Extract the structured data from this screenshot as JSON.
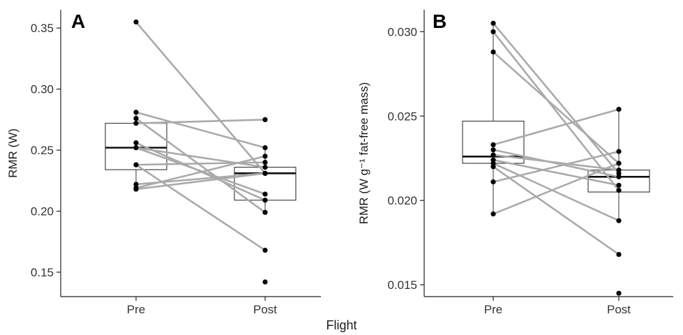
{
  "shared_xlabel": "Flight",
  "chart_data": [
    {
      "type": "box-paired",
      "panel_label": "A",
      "ylabel": "RMR (W)",
      "xlabel": "",
      "categories": [
        "Pre",
        "Post"
      ],
      "ylim": [
        0.13,
        0.365
      ],
      "yticks": [
        0.15,
        0.2,
        0.25,
        0.3,
        0.35
      ],
      "ytick_labels": [
        "0.15",
        "0.20",
        "0.25",
        "0.30",
        "0.35"
      ],
      "boxes": [
        {
          "category": "Pre",
          "q1": 0.234,
          "median": 0.252,
          "q3": 0.272,
          "whisker_low": 0.218,
          "whisker_high": 0.281
        },
        {
          "category": "Post",
          "q1": 0.209,
          "median": 0.231,
          "q3": 0.236,
          "whisker_low": 0.199,
          "whisker_high": 0.252
        }
      ],
      "pairs": [
        [
          0.355,
          0.231
        ],
        [
          0.281,
          0.252
        ],
        [
          0.276,
          0.199
        ],
        [
          0.272,
          0.275
        ],
        [
          0.256,
          0.209
        ],
        [
          0.252,
          0.236
        ],
        [
          0.252,
          0.214
        ],
        [
          0.238,
          0.24
        ],
        [
          0.238,
          0.168
        ],
        [
          0.222,
          0.231
        ],
        [
          0.219,
          0.245
        ],
        [
          0.218,
          0.231
        ]
      ],
      "outliers": [
        {
          "category": "Post",
          "value": 0.142
        }
      ]
    },
    {
      "type": "box-paired",
      "panel_label": "B",
      "ylabel": "RMR (W g⁻¹ fat-free mass)",
      "xlabel": "",
      "categories": [
        "Pre",
        "Post"
      ],
      "ylim": [
        0.0143,
        0.0313
      ],
      "yticks": [
        0.015,
        0.02,
        0.025,
        0.03
      ],
      "ytick_labels": [
        "0.015",
        "0.020",
        "0.025",
        "0.030"
      ],
      "boxes": [
        {
          "category": "Pre",
          "q1": 0.0222,
          "median": 0.0226,
          "q3": 0.0247,
          "whisker_low": 0.0192,
          "whisker_high": 0.0305
        },
        {
          "category": "Post",
          "q1": 0.0205,
          "median": 0.0214,
          "q3": 0.0218,
          "whisker_low": 0.0188,
          "whisker_high": 0.0254
        }
      ],
      "pairs": [
        [
          0.0305,
          0.0216
        ],
        [
          0.03,
          0.0206
        ],
        [
          0.0288,
          0.0222
        ],
        [
          0.0233,
          0.0254
        ],
        [
          0.023,
          0.0214
        ],
        [
          0.0227,
          0.0218
        ],
        [
          0.0224,
          0.0209
        ],
        [
          0.0222,
          0.0188
        ],
        [
          0.022,
          0.0168
        ],
        [
          0.0211,
          0.0229
        ],
        [
          0.0192,
          0.0222
        ]
      ],
      "outliers": [
        {
          "category": "Post",
          "value": 0.0145
        }
      ]
    }
  ]
}
